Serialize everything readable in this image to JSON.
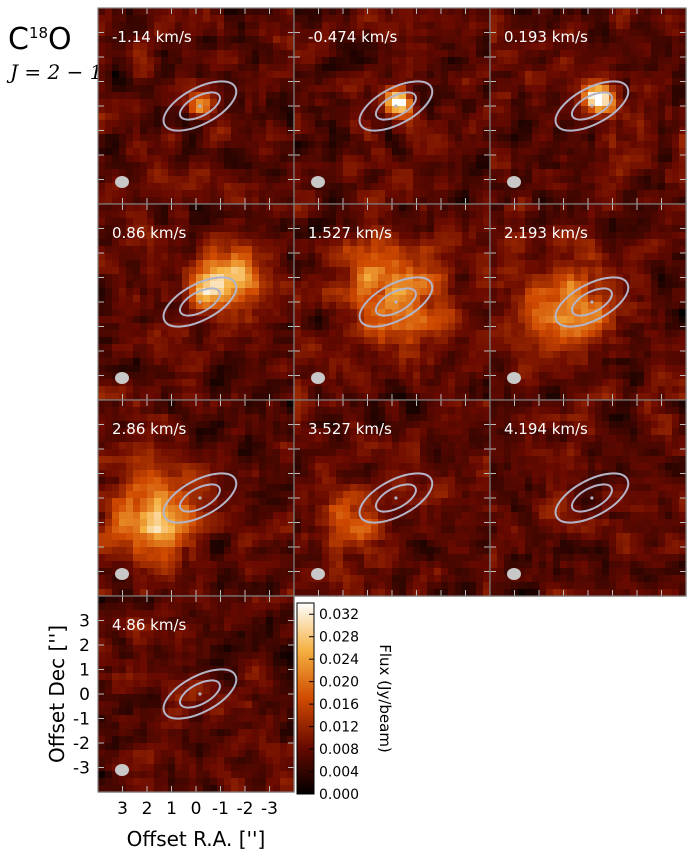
{
  "header": {
    "molecule_main": "C",
    "molecule_sup": "18",
    "molecule_tail": "O",
    "transition": "J = 2 − 1"
  },
  "colors": {
    "background_dark": "#1e0000",
    "mid": "#a02800",
    "bright": "#f0a030",
    "peak": "#ffffd0",
    "ellipse": "#b4b4c8",
    "beam": "#c8c8c8",
    "panel_border": "#808080"
  },
  "chart_data": {
    "type": "heatmap",
    "channels": [
      {
        "velocity_label": "-1.14 km/s",
        "velocity": -1.14
      },
      {
        "velocity_label": "-0.474 km/s",
        "velocity": -0.474
      },
      {
        "velocity_label": "0.193 km/s",
        "velocity": 0.193
      },
      {
        "velocity_label": "0.86 km/s",
        "velocity": 0.86
      },
      {
        "velocity_label": "1.527 km/s",
        "velocity": 1.527
      },
      {
        "velocity_label": "2.193 km/s",
        "velocity": 2.193
      },
      {
        "velocity_label": "2.86 km/s",
        "velocity": 2.86
      },
      {
        "velocity_label": "3.527 km/s",
        "velocity": 3.527
      },
      {
        "velocity_label": "4.194 km/s",
        "velocity": 4.194
      },
      {
        "velocity_label": "4.86 km/s",
        "velocity": 4.86
      }
    ],
    "xlabel": "Offset R.A. ['']",
    "ylabel": "Offset Dec ['']",
    "x_ticks": [
      "3",
      "2",
      "1",
      "0",
      "-1",
      "-2",
      "-3"
    ],
    "y_ticks": [
      "3",
      "2",
      "1",
      "0",
      "-1",
      "-2",
      "-3"
    ],
    "colorbar": {
      "label": "Flux (Jy/beam)",
      "ticks": [
        "0.000",
        "0.004",
        "0.008",
        "0.012",
        "0.016",
        "0.020",
        "0.024",
        "0.028",
        "0.032"
      ],
      "range": [
        0.0,
        0.034
      ]
    }
  }
}
